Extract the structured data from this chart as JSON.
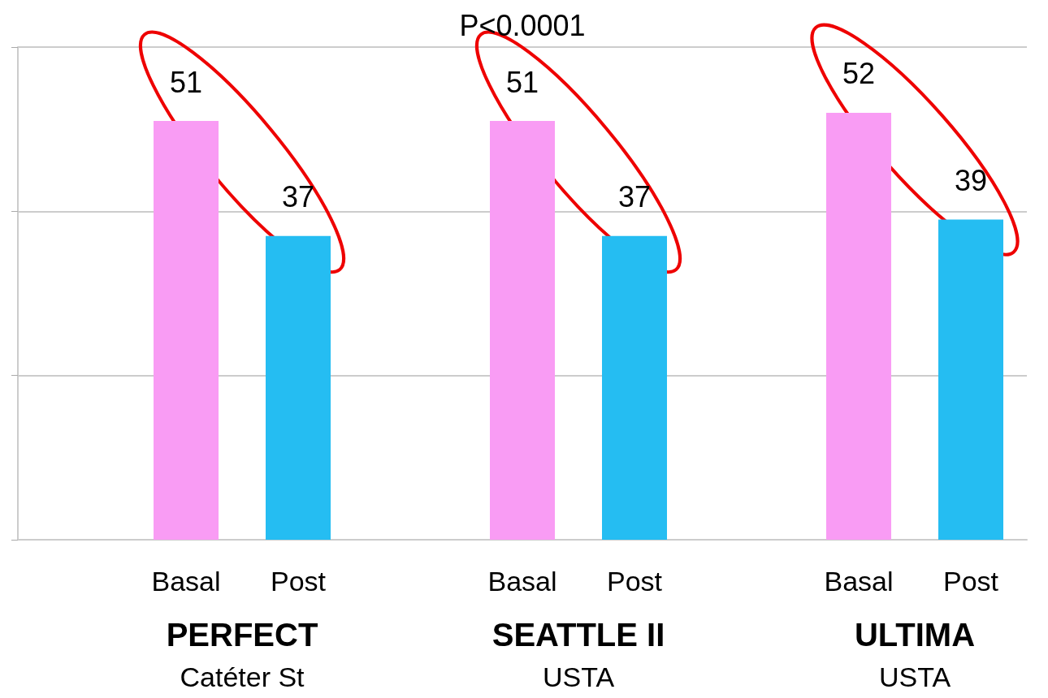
{
  "chart_data": {
    "type": "bar",
    "title": "P<0.0001",
    "categories": [
      null,
      "Basal",
      "Post",
      null,
      "Basal",
      "Post",
      null,
      "Basal",
      "Post"
    ],
    "values": [
      null,
      51,
      37,
      null,
      51,
      37,
      null,
      52,
      39
    ],
    "colors": [
      null,
      "#f99cf4",
      "#25bdf2",
      null,
      "#f99cf4",
      "#25bdf2",
      null,
      "#f99cf4",
      "#25bdf2"
    ],
    "data_labels": true,
    "ylim": [
      0,
      60
    ],
    "yticks": [
      {
        "value": 0,
        "label": null
      },
      {
        "value": 20,
        "label": null
      },
      {
        "value": 40,
        "label": null
      },
      {
        "value": 60,
        "label": null
      }
    ],
    "tick_labels": "x",
    "grid": "y",
    "annotations": [
      "PERFECT",
      "Catéter St",
      "SEATTLE II",
      "USTA",
      "ULTIMA",
      "USTA"
    ]
  }
}
